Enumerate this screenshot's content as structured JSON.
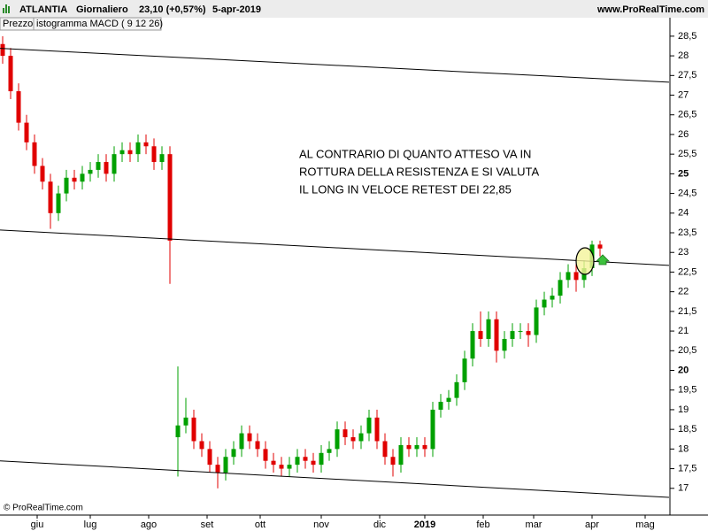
{
  "chart_data": {
    "type": "candlestick",
    "symbol": "ATLANTIA",
    "period": "Giornaliero",
    "last": "23,10 (+0,57%)",
    "date": "5-apr-2019",
    "website": "www.ProRealTime.com",
    "copyright": "© ProRealTime.com",
    "tabs": [
      "Prezzo",
      "istogramma MACD ( 9 12 26)"
    ],
    "annotation": [
      "AL CONTRARIO DI QUANTO ATTESO VA IN",
      "ROTTURA DELLA RESISTENZA E SI VALUTA",
      "IL LONG IN VELOCE RETEST DEI 22,85"
    ],
    "up_color": "#00a000",
    "down_color": "#e00000",
    "x": [
      0,
      3,
      6,
      9,
      12,
      15,
      18,
      21,
      24,
      27,
      30,
      33,
      36,
      39,
      42,
      45,
      48,
      51,
      54,
      57,
      60,
      63,
      66,
      69,
      72,
      75,
      78,
      81,
      84,
      87,
      90,
      93,
      96,
      99,
      102,
      105,
      108,
      111,
      114,
      117,
      120,
      123,
      126,
      129,
      132,
      135,
      138,
      141,
      144,
      147,
      150,
      153,
      156,
      159,
      162,
      165,
      168,
      171,
      174,
      177,
      180,
      183,
      186,
      189,
      192,
      195,
      198,
      201,
      204,
      207,
      210,
      213,
      216,
      219,
      222,
      225
    ],
    "open": [
      28.3,
      28.0,
      27.1,
      26.3,
      25.8,
      25.2,
      24.8,
      24.0,
      24.5,
      24.9,
      24.8,
      25.0,
      25.1,
      25.3,
      25.0,
      25.5,
      25.6,
      25.5,
      25.8,
      25.7,
      25.3,
      25.5,
      18.3,
      18.6,
      18.8,
      18.2,
      18.0,
      17.6,
      17.4,
      17.8,
      18.0,
      18.4,
      18.2,
      18.0,
      17.7,
      17.6,
      17.5,
      17.6,
      17.8,
      17.7,
      17.6,
      17.9,
      18.0,
      18.5,
      18.3,
      18.2,
      18.4,
      18.8,
      18.2,
      17.8,
      17.6,
      18.1,
      18.0,
      18.1,
      18.0,
      19.0,
      19.2,
      19.3,
      19.7,
      20.3,
      21.0,
      20.8,
      21.3,
      20.5,
      20.8,
      21.0,
      21.0,
      20.9,
      21.6,
      21.8,
      21.9,
      22.3,
      22.5,
      22.3,
      22.6,
      23.2
    ],
    "high": [
      28.5,
      28.2,
      27.3,
      26.5,
      26.0,
      25.4,
      25.0,
      24.7,
      25.1,
      25.1,
      25.2,
      25.3,
      25.5,
      25.5,
      25.7,
      25.8,
      25.8,
      26.0,
      26.0,
      25.9,
      25.7,
      25.7,
      20.1,
      19.3,
      19.0,
      18.4,
      18.2,
      17.8,
      18.0,
      18.2,
      18.6,
      18.6,
      18.4,
      18.2,
      17.9,
      17.8,
      17.8,
      18.0,
      18.0,
      17.9,
      18.1,
      18.2,
      18.7,
      18.7,
      18.5,
      18.6,
      19.0,
      19.0,
      18.4,
      18.0,
      18.3,
      18.3,
      18.3,
      18.3,
      19.2,
      19.4,
      19.5,
      19.9,
      20.5,
      21.2,
      21.5,
      21.5,
      21.5,
      21.0,
      21.2,
      21.2,
      21.2,
      21.8,
      22.0,
      22.1,
      22.5,
      22.7,
      22.7,
      22.8,
      23.3,
      23.3
    ],
    "low": [
      27.8,
      26.9,
      26.1,
      25.6,
      25.0,
      24.6,
      23.6,
      23.8,
      24.3,
      24.6,
      24.6,
      24.8,
      24.9,
      24.8,
      24.8,
      25.3,
      25.3,
      25.3,
      25.5,
      25.1,
      25.1,
      22.2,
      17.3,
      18.4,
      18.0,
      17.8,
      17.4,
      17.0,
      17.2,
      17.6,
      17.8,
      18.0,
      17.8,
      17.5,
      17.4,
      17.3,
      17.3,
      17.4,
      17.5,
      17.4,
      17.4,
      17.7,
      17.8,
      18.1,
      18.0,
      18.0,
      18.2,
      18.0,
      17.6,
      17.3,
      17.4,
      17.8,
      17.8,
      17.8,
      17.8,
      18.8,
      19.0,
      19.1,
      19.5,
      20.1,
      20.6,
      20.6,
      20.2,
      20.3,
      20.6,
      20.8,
      20.6,
      20.7,
      21.4,
      21.6,
      21.7,
      22.1,
      22.0,
      22.1,
      22.4,
      22.9
    ],
    "close": [
      28.0,
      27.1,
      26.3,
      25.8,
      25.2,
      24.8,
      24.0,
      24.5,
      24.9,
      24.8,
      25.0,
      25.1,
      25.3,
      25.0,
      25.5,
      25.6,
      25.5,
      25.8,
      25.7,
      25.3,
      25.5,
      23.3,
      18.6,
      18.8,
      18.2,
      18.0,
      17.6,
      17.4,
      17.8,
      18.0,
      18.4,
      18.2,
      18.0,
      17.7,
      17.6,
      17.5,
      17.6,
      17.8,
      17.7,
      17.6,
      17.9,
      18.0,
      18.5,
      18.3,
      18.2,
      18.4,
      18.8,
      18.2,
      17.8,
      17.6,
      18.1,
      18.0,
      18.1,
      18.0,
      19.0,
      19.2,
      19.3,
      19.7,
      20.3,
      21.0,
      20.8,
      21.3,
      20.5,
      20.8,
      21.0,
      21.0,
      20.9,
      21.6,
      21.8,
      21.9,
      22.3,
      22.5,
      22.3,
      22.6,
      23.2,
      23.1
    ],
    "trendlines": [
      {
        "x": [
          -1,
          251
        ],
        "y": [
          28.19,
          27.33
        ]
      },
      {
        "x": [
          -1,
          251
        ],
        "y": [
          23.57,
          22.67
        ]
      },
      {
        "x": [
          -1,
          251
        ],
        "y": [
          17.7,
          16.77
        ]
      }
    ],
    "xlim": [
      -1,
      251.33
    ],
    "xticks": [
      {
        "value": 13,
        "label": "giu"
      },
      {
        "value": 33,
        "label": "lug"
      },
      {
        "value": 55,
        "label": "ago"
      },
      {
        "value": 77,
        "label": "set"
      },
      {
        "value": 97,
        "label": "ott"
      },
      {
        "value": 120,
        "label": "nov"
      },
      {
        "value": 142,
        "label": "dic"
      },
      {
        "value": 159,
        "label": "2019"
      },
      {
        "value": 181,
        "label": "feb"
      },
      {
        "value": 200,
        "label": "mar"
      },
      {
        "value": 222,
        "label": "apr"
      },
      {
        "value": 242,
        "label": "mag"
      }
    ],
    "ylim": [
      16.32,
      28.97
    ],
    "yticks": [
      17,
      {
        "value": 17.5,
        "label": "17,5"
      },
      18,
      {
        "value": 18.5,
        "label": "18,5"
      },
      19,
      {
        "value": 19.5,
        "label": "19,5"
      },
      20,
      {
        "value": 20.5,
        "label": "20,5"
      },
      21,
      {
        "value": 21.5,
        "label": "21,5"
      },
      22,
      {
        "value": 22.5,
        "label": "22,5"
      },
      23,
      {
        "value": 23.5,
        "label": "23,5"
      },
      24,
      {
        "value": 24.5,
        "label": "24,5"
      },
      25,
      {
        "value": 25.5,
        "label": "25,5"
      },
      26,
      {
        "value": 26.5,
        "label": "26,5"
      },
      27,
      {
        "value": 27.5,
        "label": "27,5"
      },
      28,
      {
        "value": 28.5,
        "label": "28,5"
      }
    ]
  }
}
